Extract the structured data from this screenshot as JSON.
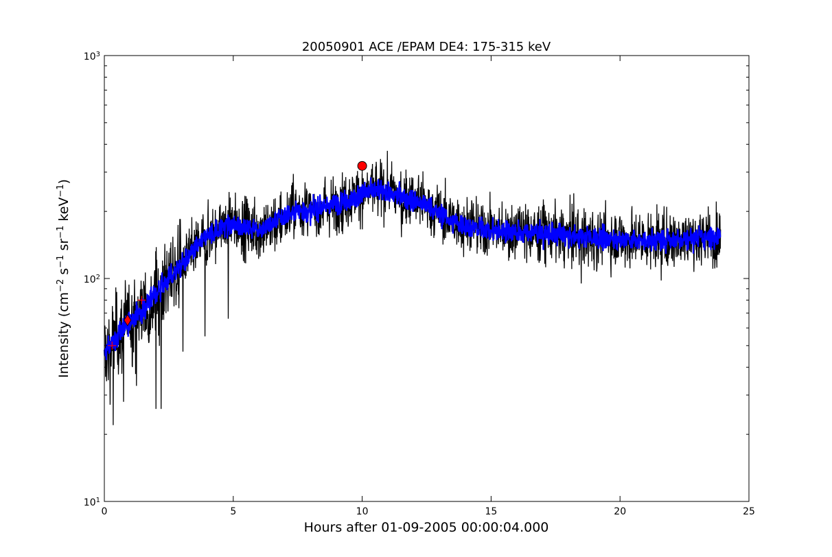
{
  "chart_data": {
    "type": "line",
    "title": "20050901 ACE /EPAM DE4: 175-315 keV",
    "xlabel": "Hours after 01-09-2005 00:00:04.000",
    "ylabel_main": "Intensity (cm",
    "ylabel_parts": [
      "Intensity (cm",
      "−2",
      " s",
      "−1",
      " sr",
      "−1",
      " keV",
      "−1",
      ")"
    ],
    "xlim": [
      0,
      25
    ],
    "ylim": [
      10,
      1000
    ],
    "yscale": "log",
    "grid": false,
    "legend": "none",
    "x_ticks": [
      0,
      5,
      10,
      15,
      20,
      25
    ],
    "x_tick_labels": [
      "0",
      "5",
      "10",
      "15",
      "20",
      "25"
    ],
    "y_ticks": [
      10,
      100,
      1000
    ],
    "y_tick_labels": [
      {
        "base": "10",
        "exp": "1"
      },
      {
        "base": "10",
        "exp": "2"
      },
      {
        "base": "10",
        "exp": "3"
      }
    ],
    "series": [
      {
        "role": "raw",
        "color": "#000000",
        "x_range": [
          0,
          23.9
        ],
        "trend_x": [
          0,
          0.5,
          1,
          1.5,
          2,
          2.5,
          3,
          3.5,
          4,
          4.5,
          5,
          5.5,
          6,
          6.5,
          7,
          7.5,
          8,
          8.5,
          9,
          9.5,
          10,
          10.5,
          11,
          11.5,
          12,
          12.5,
          13,
          13.5,
          14,
          15,
          16,
          17,
          18,
          19,
          20,
          21,
          22,
          23,
          23.9
        ],
        "trend_y": [
          46,
          55,
          65,
          72,
          85,
          100,
          115,
          135,
          155,
          170,
          175,
          170,
          165,
          175,
          190,
          205,
          200,
          210,
          215,
          225,
          240,
          250,
          245,
          230,
          225,
          215,
          195,
          180,
          172,
          165,
          162,
          160,
          155,
          152,
          150,
          148,
          150,
          152,
          155
        ],
        "spikes": [
          {
            "x": 0.35,
            "y": 22
          },
          {
            "x": 0.75,
            "y": 28
          },
          {
            "x": 1.25,
            "y": 33
          },
          {
            "x": 2.0,
            "y": 26
          },
          {
            "x": 2.2,
            "y": 26
          },
          {
            "x": 3.05,
            "y": 47
          },
          {
            "x": 3.9,
            "y": 55
          },
          {
            "x": 4.8,
            "y": 66
          },
          {
            "x": 10.0,
            "y": 295
          },
          {
            "x": 11.1,
            "y": 290
          },
          {
            "x": 18.5,
            "y": 95
          },
          {
            "x": 21.6,
            "y": 98
          }
        ]
      },
      {
        "role": "smoothed",
        "color": "#0000ff",
        "x_range": [
          0,
          23.9
        ]
      }
    ],
    "markers": [
      {
        "shape": "circle",
        "x": 10.0,
        "y": 320,
        "color": "#ff0000"
      },
      {
        "shape": "diamond",
        "x": 0.9,
        "y": 65,
        "color": "#ff0000"
      },
      {
        "shape": "plus",
        "x": 1.45,
        "y": 80,
        "color": "#ff0000"
      },
      {
        "shape": "plus",
        "x": 0.3,
        "y": 50,
        "color": "#ff0000"
      }
    ]
  }
}
